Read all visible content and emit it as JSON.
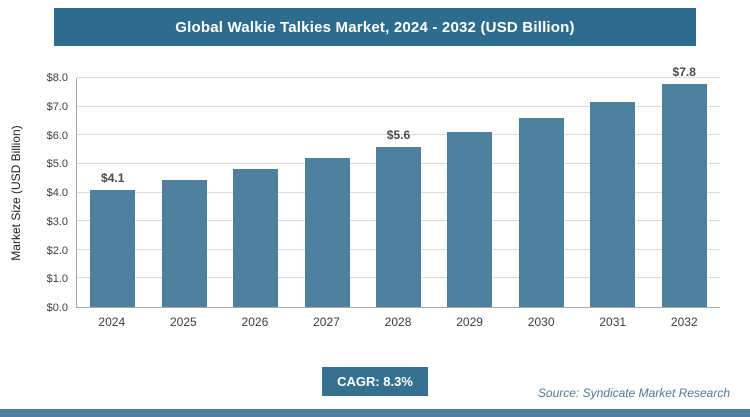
{
  "header": {
    "title": "Global Walkie Talkies Market, 2024 - 2032 (USD Billion)"
  },
  "chart_data": {
    "type": "bar",
    "title": "Global Walkie Talkies Market, 2024 - 2032 (USD Billion)",
    "categories": [
      "2024",
      "2025",
      "2026",
      "2027",
      "2028",
      "2029",
      "2030",
      "2031",
      "2032"
    ],
    "values": [
      4.1,
      4.44,
      4.81,
      5.21,
      5.6,
      6.11,
      6.61,
      7.16,
      7.8
    ],
    "bar_labels": [
      "$4.1",
      "",
      "",
      "",
      "$5.6",
      "",
      "",
      "",
      "$7.8"
    ],
    "xlabel": "",
    "ylabel": "Market Size (USD Billion)",
    "ylim": [
      0,
      8
    ],
    "ytick_step": 1.0,
    "ytick_labels": [
      "$0.0",
      "$1.0",
      "$2.0",
      "$3.0",
      "$4.0",
      "$5.0",
      "$6.0",
      "$7.0",
      "$8.0"
    ],
    "grid": true,
    "legend": false,
    "bar_color": "#4e7f9d"
  },
  "footer": {
    "cagr_label": "CAGR: 8.3%",
    "source": "Source: Syndicate Market Research"
  },
  "colors": {
    "header_bg": "#2e6c8d",
    "bar": "#4e7f9d",
    "badge_bg": "#35718f",
    "bottom_strip": "#4e7f9d",
    "gridline": "#dcdcdc"
  }
}
